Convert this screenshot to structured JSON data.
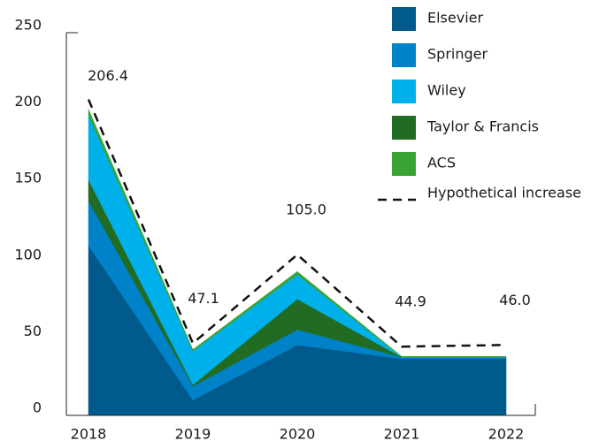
{
  "chart_data": {
    "type": "stacked_area",
    "categories": [
      "2018",
      "2019",
      "2020",
      "2021",
      "2022"
    ],
    "ylim": [
      0,
      250
    ],
    "yticks": [
      0,
      50,
      100,
      150,
      200,
      250
    ],
    "series": [
      {
        "name": "Elsevier",
        "color": "#005a8c",
        "values": [
          111,
          10,
          46,
          37,
          37
        ]
      },
      {
        "name": "Springer",
        "color": "#0082c8",
        "values": [
          29,
          9,
          10,
          1,
          1
        ]
      },
      {
        "name": "Taylor & Francis",
        "color": "#226b22",
        "values": [
          14,
          1,
          20,
          0,
          0
        ]
      },
      {
        "name": "Wiley",
        "color": "#00b0ea",
        "values": [
          42,
          22,
          16,
          0,
          0
        ]
      },
      {
        "name": "ACS",
        "color": "#3aa335",
        "values": [
          4,
          1,
          2,
          0.5,
          0.5
        ]
      }
    ],
    "line": {
      "name": "Hypothetical increase",
      "color": "#111111",
      "values": [
        206.4,
        47.1,
        105.0,
        44.9,
        46.0
      ],
      "value_labels": [
        "206.4",
        "47.1",
        "105.0",
        "44.9",
        "46.0"
      ]
    }
  }
}
